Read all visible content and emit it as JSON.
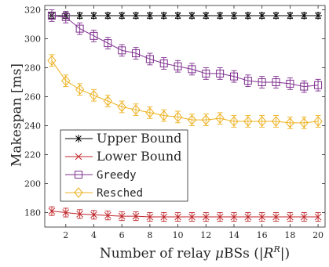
{
  "chart_data": {
    "type": "line",
    "xlabel": "Number of relay μBSs (|R^R|)",
    "ylabel": "Makespan [ms]",
    "xlim": [
      0.5,
      20.5
    ],
    "ylim": [
      170,
      323
    ],
    "xticks": [
      2,
      4,
      6,
      8,
      10,
      12,
      14,
      16,
      18,
      20
    ],
    "yticks": [
      180,
      200,
      220,
      240,
      260,
      280,
      300,
      320
    ],
    "grid": false,
    "legend_position": "center-left",
    "x": [
      1,
      2,
      3,
      4,
      5,
      6,
      7,
      8,
      9,
      10,
      11,
      12,
      13,
      14,
      15,
      16,
      17,
      18,
      19,
      20
    ],
    "series": [
      {
        "name": "Upper Bound",
        "color": "#000000",
        "marker": "asterisk",
        "values": [
          316,
          316,
          316,
          316,
          316,
          316,
          316,
          316,
          316,
          316,
          316,
          316,
          316,
          316,
          316,
          316,
          316,
          316,
          316,
          316
        ],
        "errors": [
          2,
          2,
          2,
          2,
          2,
          2,
          2,
          2,
          2,
          2,
          2,
          2,
          2,
          2,
          2,
          2,
          2,
          2,
          2,
          2
        ]
      },
      {
        "name": "Lower Bound",
        "color": "#C0262B",
        "marker": "x",
        "values": [
          181,
          180,
          179,
          178.5,
          178,
          177.5,
          177.5,
          177,
          177,
          177,
          177,
          177,
          177,
          177,
          177,
          177,
          177,
          177,
          177,
          177
        ],
        "errors": [
          3,
          3,
          3,
          3,
          3,
          3,
          3,
          3,
          3,
          3,
          3,
          3,
          3,
          3,
          3,
          3,
          3,
          3,
          3,
          3
        ]
      },
      {
        "name": "Greedy",
        "color": "#7E2F8E",
        "marker": "square",
        "values": [
          316,
          315,
          307,
          302,
          297,
          292,
          290,
          286,
          283,
          281,
          279,
          276,
          276,
          274,
          271,
          270,
          270,
          269,
          267,
          268
        ],
        "errors": [
          4,
          4,
          4,
          4,
          4,
          4,
          4,
          4,
          4,
          4,
          4,
          4,
          4,
          4,
          4,
          4,
          4,
          4,
          4,
          4
        ]
      },
      {
        "name": "Resched",
        "color": "#EDB120",
        "marker": "diamond",
        "values": [
          285,
          271,
          265,
          261,
          257,
          253,
          251,
          249,
          247,
          246,
          244,
          244,
          245,
          243,
          243,
          243,
          243,
          242,
          242,
          243
        ],
        "errors": [
          4,
          4,
          4,
          4,
          4,
          4,
          4,
          4,
          4,
          4,
          4,
          4,
          4,
          4,
          4,
          4,
          4,
          4,
          4,
          4
        ]
      }
    ]
  }
}
